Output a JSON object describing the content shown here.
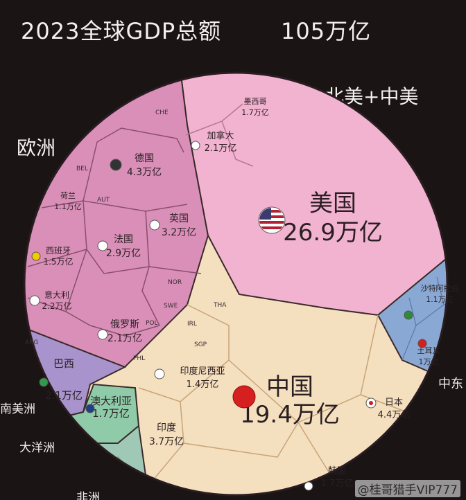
{
  "header": {
    "title": "2023全球GDP总额",
    "total": "105万亿"
  },
  "regions": {
    "north_america": "北美+中美",
    "europe": "欧洲",
    "middle_east": "中东",
    "south_america": "南美洲",
    "oceania": "大洋洲",
    "africa": "非洲"
  },
  "watermark": "@桂哥猎手VIP777",
  "colors": {
    "europe": "#d98fb8",
    "north_america": "#f2b3d0",
    "asia": "#f4dfbf",
    "middle_east": "#8aa8d4",
    "south_america": "#a893cc",
    "oceania": "#8fcaa9",
    "background": "#1a1414"
  },
  "chart_data": {
    "type": "voronoi-treemap",
    "title": "2023全球GDP总额",
    "total": "105万亿",
    "items": [
      {
        "name": "美国",
        "value": 26.9,
        "label": "26.9万亿",
        "region": "北美+中美"
      },
      {
        "name": "中国",
        "value": 19.4,
        "label": "19.4万亿",
        "region": "亚洲"
      },
      {
        "name": "日本",
        "value": 4.4,
        "label": "4.4万亿",
        "region": "亚洲"
      },
      {
        "name": "德国",
        "value": 4.3,
        "label": "4.3万亿",
        "region": "欧洲"
      },
      {
        "name": "印度",
        "value": 3.7,
        "label": "3.7万亿",
        "region": "亚洲"
      },
      {
        "name": "英国",
        "value": 3.2,
        "label": "3.2万亿",
        "region": "欧洲"
      },
      {
        "name": "法国",
        "value": 2.9,
        "label": "2.9万亿",
        "region": "欧洲"
      },
      {
        "name": "意大利",
        "value": 2.2,
        "label": "2.2万亿",
        "region": "欧洲"
      },
      {
        "name": "加拿大",
        "value": 2.1,
        "label": "2.1万亿",
        "region": "北美+中美"
      },
      {
        "name": "巴西",
        "value": 2.1,
        "label": "2.1万亿",
        "region": "南美洲"
      },
      {
        "name": "俄罗斯",
        "value": 2.1,
        "label": "2.1万亿",
        "region": "欧洲"
      },
      {
        "name": "澳大利亚",
        "value": 1.7,
        "label": "1.7万亿",
        "region": "大洋洲"
      },
      {
        "name": "韩国",
        "value": 1.7,
        "label": "1.7万亿",
        "region": "亚洲"
      },
      {
        "name": "墨西哥",
        "value": 1.7,
        "label": "1.7万亿",
        "region": "北美+中美"
      },
      {
        "name": "西班牙",
        "value": 1.5,
        "label": "1.5万亿",
        "region": "欧洲"
      },
      {
        "name": "印度尼西亚",
        "value": 1.4,
        "label": "1.4万亿",
        "region": "亚洲"
      },
      {
        "name": "荷兰",
        "value": 1.1,
        "label": "1.1万亿",
        "region": "欧洲"
      },
      {
        "name": "沙特阿拉伯",
        "value": 1.1,
        "label": "1.1万亿",
        "region": "中东"
      },
      {
        "name": "土耳其",
        "value": 1.0,
        "label": "1万亿",
        "region": "中东"
      }
    ],
    "minor_codes": [
      "CHE",
      "BEL",
      "AUT",
      "SWE",
      "POL",
      "THA",
      "SGP",
      "ARG",
      "NOR",
      "IRL",
      "PHL"
    ]
  }
}
